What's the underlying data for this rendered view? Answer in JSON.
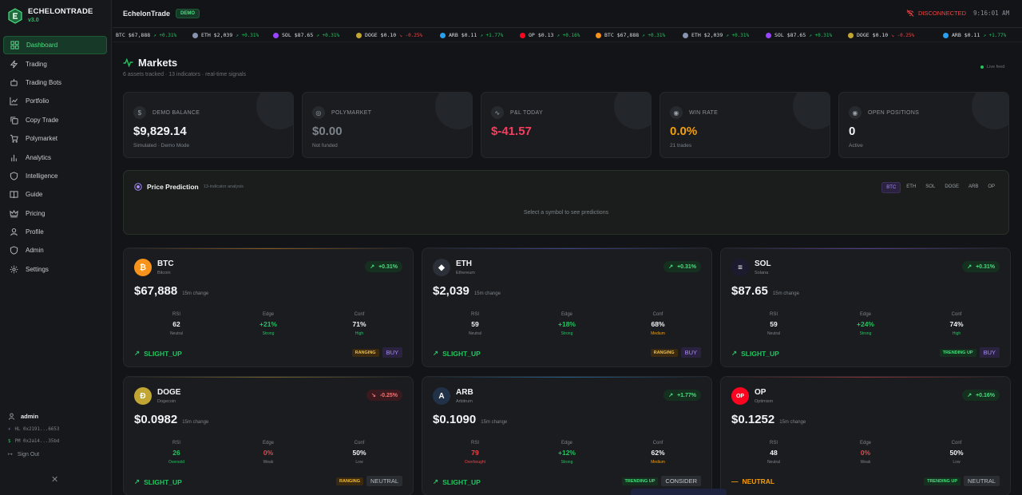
{
  "sidebar": {
    "brand": "ECHELONTRADE",
    "version": "v3.0",
    "items": [
      {
        "label": "Dashboard",
        "icon": "grid-icon",
        "active": true
      },
      {
        "label": "Trading",
        "icon": "zap-icon"
      },
      {
        "label": "Trading Bots",
        "icon": "bot-icon"
      },
      {
        "label": "Portfolio",
        "icon": "line-chart-icon"
      },
      {
        "label": "Copy Trade",
        "icon": "copy-icon"
      },
      {
        "label": "Polymarket",
        "icon": "cart-icon"
      },
      {
        "label": "Analytics",
        "icon": "bar-chart-icon"
      },
      {
        "label": "Intelligence",
        "icon": "shield-icon"
      },
      {
        "label": "Guide",
        "icon": "book-icon"
      },
      {
        "label": "Pricing",
        "icon": "crown-icon"
      },
      {
        "label": "Profile",
        "icon": "user-icon"
      },
      {
        "label": "Admin",
        "icon": "shield-check-icon"
      },
      {
        "label": "Settings",
        "icon": "gear-icon"
      }
    ],
    "user": "admin",
    "addr_hl": "HL 0x2191...6653",
    "addr_pm": "PM 0x2a14...35bd",
    "signout": "Sign Out"
  },
  "topbar": {
    "app_name": "EchelonTrade",
    "badge": "DEMO",
    "status": "DISCONNECTED",
    "clock": "9:16:01 AM"
  },
  "ticker": [
    {
      "sym": "BTC",
      "price": "$67,888",
      "chg": "+0.31%",
      "dir": "up",
      "color": "#f7931a"
    },
    {
      "sym": "ETH",
      "price": "$2,039",
      "chg": "+0.31%",
      "dir": "up",
      "color": "#8a92b2"
    },
    {
      "sym": "SOL",
      "price": "$87.65",
      "chg": "+0.31%",
      "dir": "up",
      "color": "#9945ff"
    },
    {
      "sym": "DOGE",
      "price": "$0.10",
      "chg": "-0.25%",
      "dir": "dn",
      "color": "#c2a633"
    },
    {
      "sym": "ARB",
      "price": "$0.11",
      "chg": "+1.77%",
      "dir": "up",
      "color": "#28a0f0"
    },
    {
      "sym": "OP",
      "price": "$0.13",
      "chg": "+0.16%",
      "dir": "up",
      "color": "#ff0420"
    },
    {
      "sym": "BTC",
      "price": "$67,888",
      "chg": "+0.31%",
      "dir": "up",
      "color": "#f7931a"
    },
    {
      "sym": "ETH",
      "price": "$2,039",
      "chg": "+0.31%",
      "dir": "up",
      "color": "#8a92b2"
    },
    {
      "sym": "SOL",
      "price": "$87.65",
      "chg": "+0.31%",
      "dir": "up",
      "color": "#9945ff"
    },
    {
      "sym": "DOGE",
      "price": "$0.10",
      "chg": "-0.25%",
      "dir": "dn",
      "color": "#c2a633"
    },
    {
      "sym": "ARB",
      "price": "$0.11",
      "chg": "+1.77%",
      "dir": "up",
      "color": "#28a0f0"
    }
  ],
  "header": {
    "title": "Markets",
    "subtitle": "6 assets tracked · 13 indicators · real-time signals",
    "live": "Live feed"
  },
  "stats": [
    {
      "label": "DEMO BALANCE",
      "value": "$9,829.14",
      "sub": "Simulated · Demo Mode",
      "color": "#f1f3f4",
      "icon": "dollar-icon"
    },
    {
      "label": "POLYMARKET",
      "value": "$0.00",
      "sub": "Not funded",
      "color": "#7d838a",
      "icon": "globe-icon"
    },
    {
      "label": "P&L TODAY",
      "value": "$-41.57",
      "sub": "",
      "color": "#f43f5e",
      "icon": "activity-icon"
    },
    {
      "label": "WIN RATE",
      "value": "0.0%",
      "sub": "21 trades",
      "color": "#f59e0b",
      "icon": "target-icon"
    },
    {
      "label": "OPEN POSITIONS",
      "value": "0",
      "sub": "Active",
      "color": "#f1f3f4",
      "icon": "eye-icon"
    }
  ],
  "prediction": {
    "title": "Price Prediction",
    "subtitle": "13-indicator analysis",
    "empty": "Select a symbol to see predictions",
    "symbols": [
      "BTC",
      "ETH",
      "SOL",
      "DOGE",
      "ARB",
      "OP"
    ],
    "selected": "BTC"
  },
  "assets": [
    {
      "sym": "BTC",
      "name": "Bitcoin",
      "chg": "+0.31%",
      "dir": "up",
      "price": "$67,888",
      "period": "15m change",
      "rsi": "62",
      "rsi_s": "Neutral",
      "edge": "+21%",
      "edge_s": "Strong",
      "conf": "71%",
      "conf_s": "High",
      "trend": "SLIGHT_UP",
      "trend_dir": "up",
      "regime": "RANGING",
      "action": "BUY",
      "color": "#f7931a",
      "glyph": "₿"
    },
    {
      "sym": "ETH",
      "name": "Ethereum",
      "chg": "+0.31%",
      "dir": "up",
      "price": "$2,039",
      "period": "15m change",
      "rsi": "59",
      "rsi_s": "Neutral",
      "edge": "+18%",
      "edge_s": "Strong",
      "conf": "68%",
      "conf_s": "Medium",
      "trend": "SLIGHT_UP",
      "trend_dir": "up",
      "regime": "RANGING",
      "action": "BUY",
      "color": "#2b2f38",
      "glyph": "◆"
    },
    {
      "sym": "SOL",
      "name": "Solana",
      "chg": "+0.31%",
      "dir": "up",
      "price": "$87.65",
      "period": "15m change",
      "rsi": "59",
      "rsi_s": "Neutral",
      "edge": "+24%",
      "edge_s": "Strong",
      "conf": "74%",
      "conf_s": "High",
      "trend": "SLIGHT_UP",
      "trend_dir": "up",
      "regime": "TRENDING UP",
      "action": "BUY",
      "color": "#1c1a2e",
      "glyph": "≡"
    },
    {
      "sym": "DOGE",
      "name": "Dogecoin",
      "chg": "-0.25%",
      "dir": "dn",
      "price": "$0.0982",
      "period": "15m change",
      "rsi": "26",
      "rsi_s": "Oversold",
      "edge": "0%",
      "edge_s": "Weak",
      "conf": "50%",
      "conf_s": "Low",
      "trend": "SLIGHT_UP",
      "trend_dir": "up",
      "regime": "RANGING",
      "action": "NEUTRAL",
      "color": "#c2a633",
      "glyph": "Ð"
    },
    {
      "sym": "ARB",
      "name": "Arbitrum",
      "chg": "+1.77%",
      "dir": "up",
      "price": "$0.1090",
      "period": "15m change",
      "rsi": "79",
      "rsi_s": "Overbought",
      "edge": "+12%",
      "edge_s": "Strong",
      "conf": "62%",
      "conf_s": "Medium",
      "trend": "SLIGHT_UP",
      "trend_dir": "up",
      "regime": "TRENDING UP",
      "action": "CONSIDER",
      "color": "#213147",
      "glyph": "A"
    },
    {
      "sym": "OP",
      "name": "Optimism",
      "chg": "+0.16%",
      "dir": "up",
      "price": "$0.1252",
      "period": "15m change",
      "rsi": "48",
      "rsi_s": "Neutral",
      "edge": "0%",
      "edge_s": "Weak",
      "conf": "50%",
      "conf_s": "Low",
      "trend": "NEUTRAL",
      "trend_dir": "flat",
      "regime": "TRENDING UP",
      "action": "NEUTRAL",
      "color": "#ff0420",
      "glyph": "OP"
    }
  ]
}
